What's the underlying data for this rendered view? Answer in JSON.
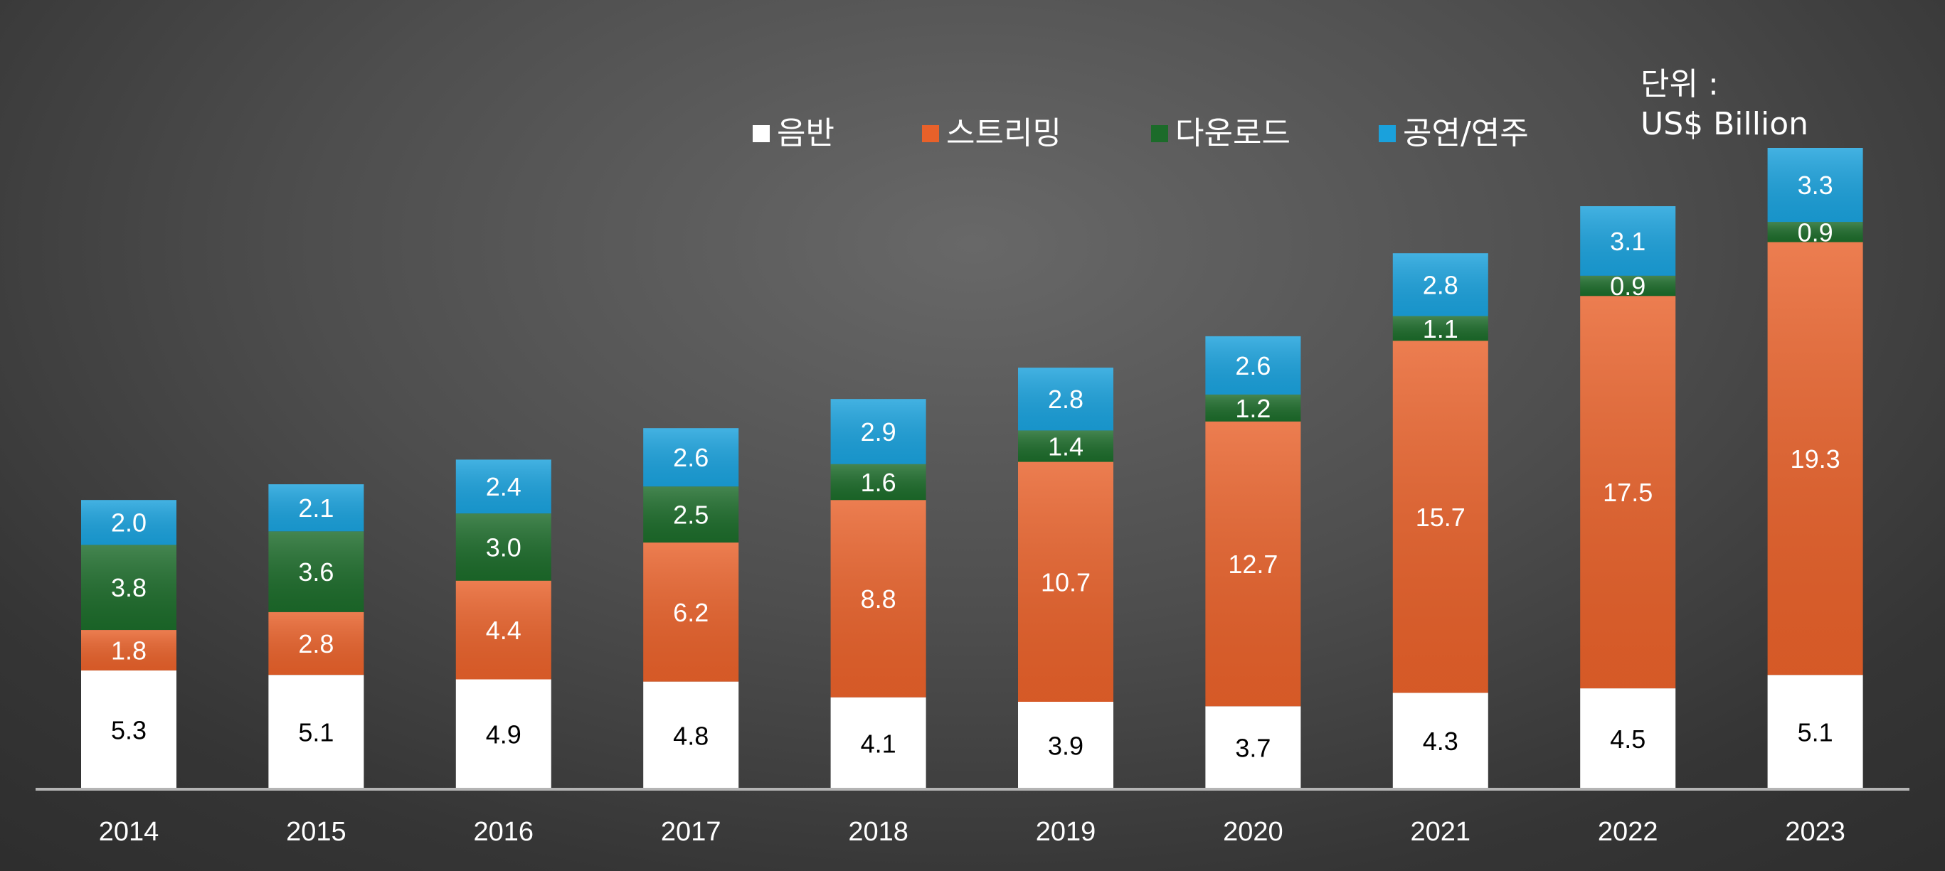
{
  "chart_data": {
    "type": "bar",
    "stacked": true,
    "categories": [
      "2014",
      "2015",
      "2016",
      "2017",
      "2018",
      "2019",
      "2020",
      "2021",
      "2022",
      "2023"
    ],
    "series": [
      {
        "name": "음반",
        "color": "#ffffff",
        "label_color": "#000000",
        "values": [
          5.3,
          5.1,
          4.9,
          4.8,
          4.1,
          3.9,
          3.7,
          4.3,
          4.5,
          5.1
        ]
      },
      {
        "name": "스트리밍",
        "color": "#e8612a",
        "label_color": "#ffffff",
        "values": [
          1.8,
          2.8,
          4.4,
          6.2,
          8.8,
          10.7,
          12.7,
          15.7,
          17.5,
          19.3
        ]
      },
      {
        "name": "다운로드",
        "color": "#1c6b2a",
        "label_color": "#ffffff",
        "values": [
          3.8,
          3.6,
          3.0,
          2.5,
          1.6,
          1.4,
          1.2,
          1.1,
          0.9,
          0.9
        ]
      },
      {
        "name": "공연/연주",
        "color": "#1aa1dc",
        "label_color": "#ffffff",
        "values": [
          2.0,
          2.1,
          2.4,
          2.6,
          2.9,
          2.8,
          2.6,
          2.8,
          3.1,
          3.3
        ]
      }
    ],
    "unit_label": [
      "단위 :",
      "US$ Billion"
    ],
    "legend_position": "top",
    "grid": false,
    "ylim": [
      0,
      28.6
    ]
  }
}
